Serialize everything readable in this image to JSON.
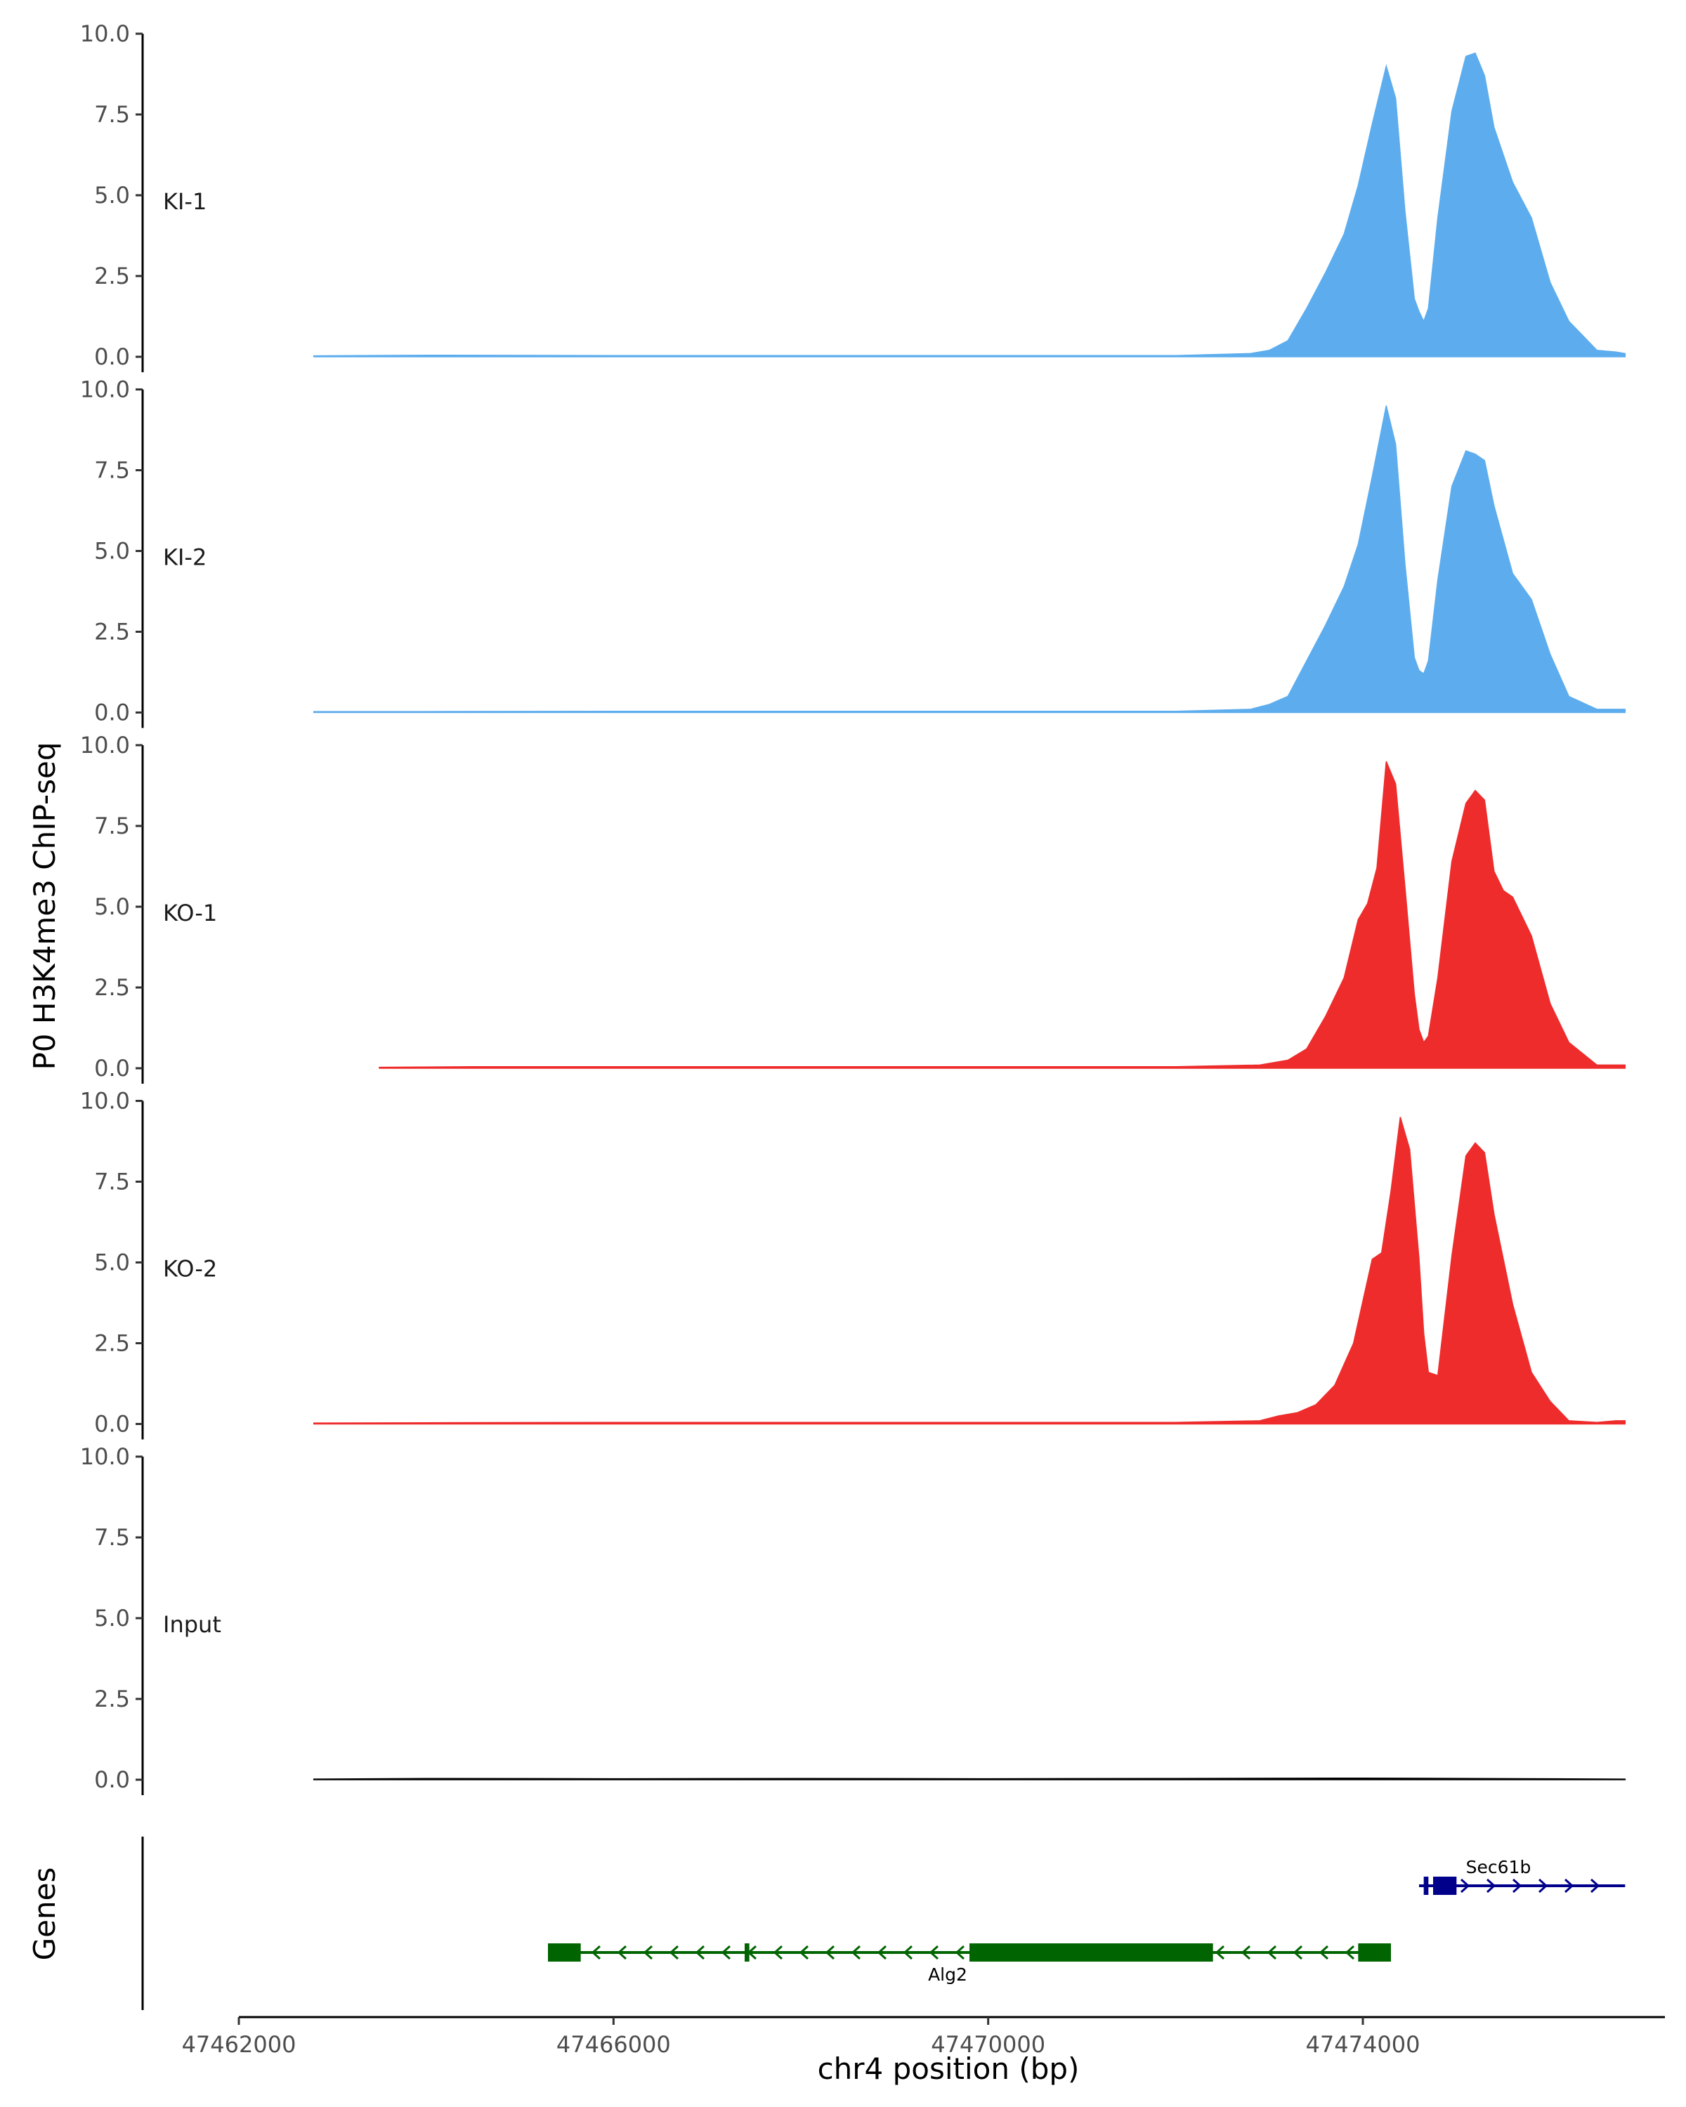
{
  "chart_data": {
    "type": "area",
    "title": "",
    "ylabel": "P0 H3K4me3 ChIP-seq",
    "xlabel": "chr4 position (bp)",
    "chromosome": "chr4",
    "xlim": [
      47462000,
      47477000
    ],
    "ylim": [
      0,
      10
    ],
    "yticks": [
      0,
      2.5,
      5,
      7.5,
      10
    ],
    "ytick_labels": [
      "0.0",
      "2.5",
      "5.0",
      "7.5",
      "10.0"
    ],
    "xticks": [
      47462000,
      47466000,
      47470000,
      47474000
    ],
    "xtick_labels": [
      "47462000",
      "47466000",
      "47470000",
      "47474000"
    ],
    "tracks": [
      {
        "name": "KI-1",
        "label": "KI-1",
        "color": "#5DADEE",
        "x": [
          47462800,
          47464000,
          47466000,
          47468000,
          47470000,
          47472000,
          47472800,
          47473000,
          47473200,
          47473400,
          47473600,
          47473800,
          47473950,
          47474100,
          47474250,
          47474350,
          47474450,
          47474550,
          47474600,
          47474650,
          47474700,
          47474800,
          47474950,
          47475100,
          47475200,
          47475300,
          47475400,
          47475600,
          47475800,
          47476000,
          47476200,
          47476500,
          47476700,
          47476800
        ],
        "y": [
          0.03,
          0.05,
          0.04,
          0.04,
          0.04,
          0.04,
          0.1,
          0.2,
          0.5,
          1.5,
          2.6,
          3.8,
          5.3,
          7.2,
          9.0,
          8.0,
          4.5,
          1.8,
          1.4,
          1.1,
          1.5,
          4.3,
          7.6,
          9.3,
          9.4,
          8.7,
          7.1,
          5.4,
          4.3,
          2.3,
          1.1,
          0.2,
          0.15,
          0.1
        ]
      },
      {
        "name": "KI-2",
        "label": "KI-2",
        "color": "#5DADEE",
        "x": [
          47462800,
          47464000,
          47466000,
          47468000,
          47470000,
          47472000,
          47472800,
          47473000,
          47473200,
          47473400,
          47473600,
          47473800,
          47473950,
          47474100,
          47474250,
          47474350,
          47474450,
          47474550,
          47474600,
          47474650,
          47474700,
          47474800,
          47474950,
          47475100,
          47475200,
          47475300,
          47475400,
          47475600,
          47475800,
          47476000,
          47476200,
          47476500,
          47476700,
          47476800
        ],
        "y": [
          0.03,
          0.03,
          0.04,
          0.04,
          0.04,
          0.04,
          0.1,
          0.25,
          0.5,
          1.6,
          2.7,
          3.9,
          5.2,
          7.3,
          9.5,
          8.3,
          4.6,
          1.7,
          1.3,
          1.2,
          1.6,
          4.1,
          7.0,
          8.1,
          8.0,
          7.8,
          6.4,
          4.3,
          3.5,
          1.8,
          0.5,
          0.1,
          0.1,
          0.1
        ]
      },
      {
        "name": "KO-1",
        "label": "KO-1",
        "color": "#EE2C2C",
        "x": [
          47463500,
          47464500,
          47466000,
          47468000,
          47470000,
          47472000,
          47472900,
          47473200,
          47473400,
          47473600,
          47473800,
          47473950,
          47474050,
          47474150,
          47474250,
          47474350,
          47474450,
          47474550,
          47474600,
          47474650,
          47474700,
          47474800,
          47474950,
          47475100,
          47475200,
          47475300,
          47475400,
          47475500,
          47475600,
          47475800,
          47476000,
          47476200,
          47476500,
          47476700,
          47476800
        ],
        "y": [
          0.03,
          0.05,
          0.05,
          0.05,
          0.05,
          0.05,
          0.1,
          0.25,
          0.6,
          1.6,
          2.8,
          4.6,
          5.1,
          6.2,
          9.5,
          8.8,
          5.6,
          2.3,
          1.2,
          0.8,
          1.0,
          2.8,
          6.4,
          8.2,
          8.6,
          8.3,
          6.1,
          5.5,
          5.3,
          4.1,
          2.0,
          0.8,
          0.1,
          0.1,
          0.1
        ]
      },
      {
        "name": "KO-2",
        "label": "KO-2",
        "color": "#EE2C2C",
        "x": [
          47462800,
          47464000,
          47466000,
          47468000,
          47470000,
          47472000,
          47472900,
          47473100,
          47473300,
          47473500,
          47473700,
          47473900,
          47474000,
          47474100,
          47474200,
          47474300,
          47474400,
          47474500,
          47474600,
          47474650,
          47474700,
          47474800,
          47474950,
          47475100,
          47475200,
          47475300,
          47475400,
          47475600,
          47475800,
          47476000,
          47476200,
          47476500,
          47476700,
          47476800
        ],
        "y": [
          0.03,
          0.04,
          0.05,
          0.05,
          0.05,
          0.05,
          0.1,
          0.25,
          0.35,
          0.6,
          1.2,
          2.5,
          3.8,
          5.1,
          5.3,
          7.2,
          9.5,
          8.5,
          5.1,
          2.8,
          1.6,
          1.5,
          5.2,
          8.3,
          8.7,
          8.4,
          6.5,
          3.7,
          1.6,
          0.7,
          0.1,
          0.05,
          0.1,
          0.1
        ]
      },
      {
        "name": "Input",
        "label": "Input",
        "color": "#000000",
        "x": [
          47462800,
          47464000,
          47466000,
          47468000,
          47470000,
          47472000,
          47474000,
          47476000,
          47476800
        ],
        "y": [
          0.02,
          0.04,
          0.03,
          0.04,
          0.03,
          0.04,
          0.05,
          0.03,
          0.02
        ]
      }
    ],
    "genes_track": {
      "label": "Genes",
      "genes": [
        {
          "name": "Sec61b",
          "color": "#00008B",
          "strand": "+",
          "start": 47474600,
          "end": 47476800,
          "exons": [
            [
              47474650,
              47474700
            ],
            [
              47474750,
              47475000
            ]
          ]
        },
        {
          "name": "Alg2",
          "color": "#006400",
          "strand": "-",
          "start": 47465300,
          "end": 47474300,
          "exons": [
            [
              47465300,
              47465650
            ],
            [
              47467400,
              47467450
            ],
            [
              47469800,
              47472400
            ],
            [
              47473950,
              47474300
            ]
          ]
        }
      ]
    }
  }
}
